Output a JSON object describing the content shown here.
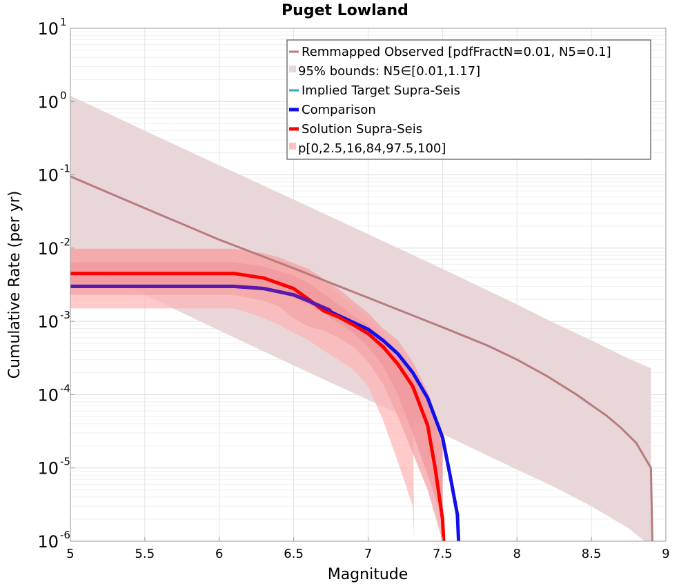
{
  "chart_data": {
    "type": "line",
    "title": "Puget Lowland",
    "xlabel": "Magnitude",
    "ylabel": "Cumulative Rate (per yr)",
    "xlim": [
      5,
      9
    ],
    "ylim": [
      1e-06,
      10
    ],
    "yscale": "log",
    "grid": true,
    "legend_position": "top-right",
    "x_ticks": [
      {
        "value": 5,
        "label": "5"
      },
      {
        "value": 5.5,
        "label": "5.5"
      },
      {
        "value": 6,
        "label": "6"
      },
      {
        "value": 6.5,
        "label": "6.5"
      },
      {
        "value": 7,
        "label": "7"
      },
      {
        "value": 7.5,
        "label": "7.5"
      },
      {
        "value": 8,
        "label": "8"
      },
      {
        "value": 8.5,
        "label": "8.5"
      },
      {
        "value": 9,
        "label": "9"
      }
    ],
    "y_ticks": [
      {
        "value": 10,
        "base": "10",
        "exp": "1"
      },
      {
        "value": 1,
        "base": "10",
        "exp": "0"
      },
      {
        "value": 0.1,
        "base": "10",
        "exp": "-1"
      },
      {
        "value": 0.01,
        "base": "10",
        "exp": "-2"
      },
      {
        "value": 0.001,
        "base": "10",
        "exp": "-3"
      },
      {
        "value": 0.0001,
        "base": "10",
        "exp": "-4"
      },
      {
        "value": 1e-05,
        "base": "10",
        "exp": "-5"
      },
      {
        "value": 1e-06,
        "base": "10",
        "exp": "-6"
      }
    ],
    "bands": [
      {
        "legend_ref": 1,
        "color": "#e8d6d9",
        "x": [
          5.0,
          5.5,
          6.0,
          6.5,
          7.0,
          7.5,
          8.0,
          8.25,
          8.5,
          8.75,
          8.9
        ],
        "upper": [
          1.2,
          0.4,
          0.135,
          0.046,
          0.0155,
          0.0052,
          0.0017,
          0.00095,
          0.00055,
          0.00031,
          0.00023
        ],
        "lower": [
          0.0075,
          0.0023,
          0.00075,
          0.00025,
          8.5e-05,
          2.9e-05,
          9.5e-06,
          5.5e-06,
          3e-06,
          1.5e-06,
          8.5e-07
        ]
      },
      {
        "legend_ref": 5,
        "color": "#ffb3b3",
        "opacity": 0.7,
        "x": [
          5.0,
          6.1,
          6.2,
          6.3,
          6.4,
          6.5,
          6.6,
          6.7,
          6.8,
          6.9,
          7.0,
          7.1,
          7.2,
          7.3,
          7.31
        ],
        "upper": [
          0.0095,
          0.0095,
          0.0085,
          0.0075,
          0.0068,
          0.0058,
          0.0048,
          0.0034,
          0.0024,
          0.0016,
          0.0011,
          0.0007,
          0.00035,
          0.00012,
          1e-06
        ],
        "lower": [
          0.0015,
          0.0015,
          0.0013,
          0.0011,
          0.0009,
          0.0007,
          0.00055,
          0.0004,
          0.0003,
          0.00022,
          0.00013,
          4.5e-05,
          1.2e-05,
          3e-06,
          1e-06
        ]
      },
      {
        "legend_ref": 5,
        "color": "#f4a3a6",
        "opacity": 0.75,
        "x": [
          5.0,
          6.1,
          6.3,
          6.4,
          6.5,
          6.6,
          6.7,
          6.8,
          6.9,
          7.0,
          7.1,
          7.2,
          7.3,
          7.4,
          7.5
        ],
        "upper": [
          0.0098,
          0.0098,
          0.0085,
          0.0075,
          0.0062,
          0.0052,
          0.0038,
          0.0028,
          0.0019,
          0.0013,
          0.0008,
          0.00055,
          0.00028,
          0.00011,
          3e-05
        ],
        "lower": [
          0.0023,
          0.0023,
          0.0019,
          0.0016,
          0.0011,
          0.00085,
          0.00075,
          0.0006,
          0.00045,
          0.00028,
          0.00014,
          5e-05,
          1.6e-05,
          5e-06,
          1e-06
        ]
      },
      {
        "legend_ref": 5,
        "color": "#ef959b",
        "opacity": 0.7,
        "x": [
          5.0,
          6.1,
          6.3,
          6.5,
          6.6,
          6.7,
          6.8,
          6.9,
          7.0,
          7.1,
          7.2,
          7.3,
          7.4,
          7.5
        ],
        "upper": [
          0.0064,
          0.0064,
          0.0056,
          0.0042,
          0.0033,
          0.0024,
          0.0017,
          0.0012,
          0.0009,
          0.0006,
          0.0004,
          0.00022,
          8e-05,
          2e-05
        ],
        "lower": [
          0.0032,
          0.0032,
          0.0029,
          0.0021,
          0.0017,
          0.0013,
          0.00095,
          0.0007,
          0.00045,
          0.00025,
          0.0001,
          3e-05,
          8e-06,
          2e-06
        ]
      }
    ],
    "series": [
      {
        "legend_ref": 0,
        "color": "#b87b7b",
        "width": 3,
        "x": [
          5.0,
          5.5,
          6.0,
          6.5,
          7.0,
          7.5,
          7.8,
          8.0,
          8.2,
          8.4,
          8.5,
          8.6,
          8.7,
          8.8,
          8.9,
          8.91
        ],
        "y": [
          0.095,
          0.035,
          0.013,
          0.0053,
          0.0021,
          0.00083,
          0.00047,
          0.0003,
          0.00018,
          0.0001,
          7.2e-05,
          5.2e-05,
          3.5e-05,
          2.2e-05,
          1e-05,
          8e-07
        ]
      },
      {
        "legend_ref": 3,
        "color": "#1010ee",
        "width": 5,
        "x": [
          5.0,
          6.1,
          6.3,
          6.5,
          6.6,
          6.8,
          7.0,
          7.1,
          7.2,
          7.3,
          7.4,
          7.5,
          7.55,
          7.6,
          7.61
        ],
        "y": [
          0.003,
          0.003,
          0.0028,
          0.0023,
          0.0019,
          0.0012,
          0.00078,
          0.00055,
          0.00036,
          0.0002,
          9e-05,
          2.6e-05,
          8e-06,
          2.3e-06,
          8e-07
        ]
      },
      {
        "legend_ref": 4,
        "color": "#ff0000",
        "width": 5,
        "x": [
          5.0,
          6.1,
          6.3,
          6.5,
          6.6,
          6.7,
          6.8,
          6.9,
          7.0,
          7.1,
          7.2,
          7.3,
          7.4,
          7.45,
          7.5,
          7.51
        ],
        "y": [
          0.0045,
          0.0045,
          0.0039,
          0.0028,
          0.002,
          0.0014,
          0.00115,
          0.0009,
          0.00068,
          0.00045,
          0.00026,
          0.00013,
          3.8e-05,
          1e-05,
          2e-06,
          8e-07
        ]
      }
    ],
    "overlap_series": {
      "color": "#5a1aa8",
      "width": 5,
      "x": [
        5.0,
        6.1,
        6.3,
        6.5,
        6.6,
        6.75
      ],
      "y": [
        0.003,
        0.003,
        0.0028,
        0.0023,
        0.0019,
        0.0014
      ]
    },
    "legend": [
      {
        "label": "Remmapped Observed [pdfFractN=0.01, N5=0.1]",
        "color": "#b87b7b",
        "kind": "line"
      },
      {
        "label": "95% bounds: N5∈[0.01,1.17]",
        "color": "#e8d6d9",
        "kind": "patch"
      },
      {
        "label": "Implied Target Supra-Seis",
        "color": "#20b0c0",
        "kind": "line"
      },
      {
        "label": "Comparison",
        "color": "#1010ee",
        "kind": "line"
      },
      {
        "label": "Solution Supra-Seis",
        "color": "#ff0000",
        "kind": "line"
      },
      {
        "label": "p[0,2.5,16,84,97.5,100]",
        "color": "#ffc0c0",
        "kind": "patch"
      }
    ]
  }
}
